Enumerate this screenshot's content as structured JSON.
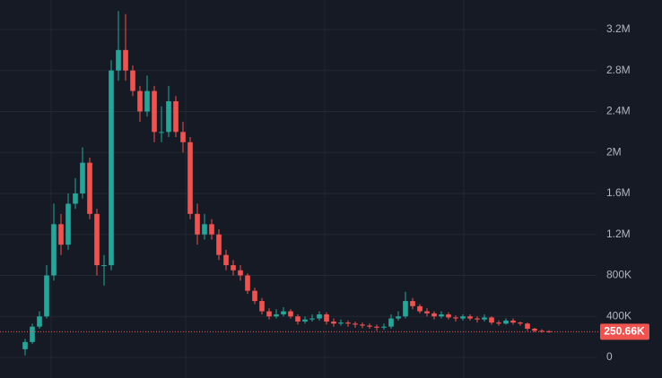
{
  "chart_data": {
    "type": "candlestick",
    "ylim": [
      -201000,
      3488000
    ],
    "yticks": [
      0,
      {
        "value": 400000,
        "label": "400K"
      },
      {
        "value": 800000,
        "label": "800K"
      },
      {
        "value": 1200000,
        "label": "1.2M"
      },
      {
        "value": 1600000,
        "label": "1.6M"
      },
      {
        "value": 2000000,
        "label": "2M"
      },
      {
        "value": 2400000,
        "label": "2.4M"
      },
      {
        "value": 2800000,
        "label": "2.8M"
      },
      {
        "value": 3200000,
        "label": "3.2M"
      }
    ],
    "grid": true,
    "up_color": "#26a69a",
    "down_color": "#ef5350",
    "open": [
      80000,
      150000,
      300000,
      400000,
      800000,
      1300000,
      1100000,
      1500000,
      1600000,
      1900000,
      1400000,
      900000,
      900000,
      2800000,
      3000000,
      2800000,
      2600000,
      2400000,
      2600000,
      2200000,
      2200000,
      2500000,
      2200000,
      2100000,
      1400000,
      1200000,
      1300000,
      1200000,
      1000000,
      900000,
      850000,
      800000,
      650000,
      550000,
      450000,
      400000,
      420000,
      450000,
      400000,
      350000,
      370000,
      380000,
      420000,
      350000,
      330000,
      340000,
      330000,
      320000,
      310000,
      300000,
      290000,
      300000,
      380000,
      400000,
      550000,
      500000,
      450000,
      430000,
      400000,
      420000,
      390000,
      380000,
      400000,
      380000,
      370000,
      390000,
      340000,
      330000,
      360000,
      340000,
      330000,
      280000,
      260000,
      255000
    ],
    "high": [
      180000,
      330000,
      450000,
      900000,
      1500000,
      1400000,
      1600000,
      1750000,
      2050000,
      1950000,
      1450000,
      1000000,
      2900000,
      3380000,
      3350000,
      2850000,
      2650000,
      2750000,
      2650000,
      2450000,
      2650000,
      2550000,
      2300000,
      2150000,
      1500000,
      1400000,
      1350000,
      1250000,
      1050000,
      950000,
      900000,
      820000,
      680000,
      580000,
      480000,
      470000,
      490000,
      470000,
      420000,
      400000,
      420000,
      450000,
      440000,
      380000,
      370000,
      360000,
      350000,
      340000,
      330000,
      320000,
      330000,
      420000,
      450000,
      640000,
      580000,
      520000,
      480000,
      450000,
      450000,
      440000,
      410000,
      420000,
      420000,
      400000,
      420000,
      400000,
      360000,
      380000,
      380000,
      350000,
      340000,
      290000,
      275000,
      265000
    ],
    "low": [
      20000,
      130000,
      280000,
      380000,
      750000,
      1000000,
      1050000,
      1450000,
      1550000,
      1350000,
      800000,
      700000,
      850000,
      2700000,
      2700000,
      2550000,
      2300000,
      2350000,
      2100000,
      2100000,
      2150000,
      2150000,
      2000000,
      1350000,
      1100000,
      1150000,
      1150000,
      950000,
      850000,
      800000,
      750000,
      620000,
      520000,
      420000,
      370000,
      380000,
      400000,
      380000,
      320000,
      330000,
      350000,
      360000,
      320000,
      300000,
      310000,
      300000,
      290000,
      285000,
      280000,
      260000,
      270000,
      280000,
      360000,
      380000,
      470000,
      430000,
      400000,
      370000,
      380000,
      370000,
      350000,
      360000,
      360000,
      340000,
      350000,
      320000,
      310000,
      320000,
      320000,
      310000,
      260000,
      245000,
      240000,
      240000
    ],
    "close": [
      150000,
      300000,
      400000,
      800000,
      1300000,
      1100000,
      1500000,
      1600000,
      1900000,
      1400000,
      900000,
      900000,
      2800000,
      3000000,
      2800000,
      2600000,
      2400000,
      2600000,
      2200000,
      2200000,
      2500000,
      2200000,
      2100000,
      1400000,
      1200000,
      1300000,
      1200000,
      1000000,
      900000,
      850000,
      800000,
      650000,
      550000,
      450000,
      400000,
      420000,
      450000,
      400000,
      350000,
      370000,
      380000,
      420000,
      350000,
      330000,
      340000,
      330000,
      320000,
      310000,
      300000,
      290000,
      300000,
      380000,
      400000,
      550000,
      500000,
      450000,
      430000,
      400000,
      420000,
      390000,
      380000,
      400000,
      380000,
      370000,
      390000,
      340000,
      330000,
      360000,
      340000,
      330000,
      280000,
      260000,
      255000,
      250660
    ],
    "last_price": {
      "value": 250660,
      "label": "250.66K"
    }
  }
}
